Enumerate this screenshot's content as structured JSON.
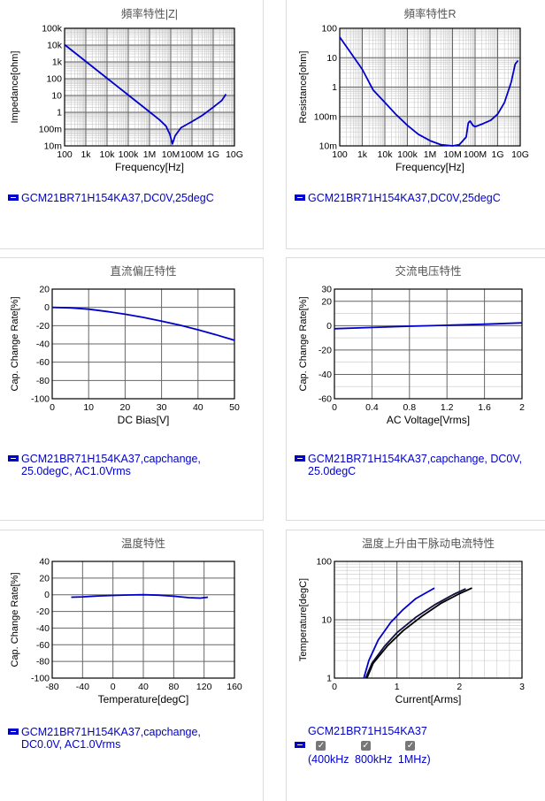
{
  "charts": [
    {
      "title": "頻率特性|Z|",
      "xlabel": "Frequency[Hz]",
      "ylabel": "Impedance[ohm]",
      "xticks": [
        "100",
        "1k",
        "10k",
        "100k",
        "1M",
        "10M",
        "100M",
        "1G",
        "10G"
      ],
      "yticks": [
        "100k",
        "10k",
        "1k",
        "100",
        "10",
        "1",
        "100m",
        "10m"
      ],
      "legend": "GCM21BR71H154KA37,DC0V,25degC"
    },
    {
      "title": "頻率特性R",
      "xlabel": "Frequency[Hz]",
      "ylabel": "Resistance[ohm]",
      "xticks": [
        "100",
        "1k",
        "10k",
        "100k",
        "1M",
        "10M",
        "100M",
        "1G",
        "10G"
      ],
      "yticks": [
        "100",
        "10",
        "1",
        "100m",
        "10m"
      ],
      "legend": "GCM21BR71H154KA37,DC0V,25degC"
    },
    {
      "title": "直流偏圧特性",
      "xlabel": "DC Bias[V]",
      "ylabel": "Cap. Change Rate[%]",
      "xticks": [
        "0",
        "10",
        "20",
        "30",
        "40",
        "50"
      ],
      "yticks": [
        "20",
        "0",
        "-20",
        "-40",
        "-60",
        "-80",
        "-100"
      ],
      "legend_lines": [
        "GCM21BR71H154KA37,capchange,",
        "25.0degC, AC1.0Vrms"
      ]
    },
    {
      "title": "交流电压特性",
      "xlabel": "AC Voltage[Vrms]",
      "ylabel": "Cap. Change Rate[%]",
      "xticks": [
        "0",
        "0.4",
        "0.8",
        "1.2",
        "1.6",
        "2"
      ],
      "yticks": [
        "30",
        "20",
        "0",
        "-20",
        "-40",
        "-60"
      ],
      "legend_lines": [
        "GCM21BR71H154KA37,capchange, DC0V,",
        "25.0degC"
      ]
    },
    {
      "title": "温度特性",
      "xlabel": "Temperature[degC]",
      "ylabel": "Cap. Change Rate[%]",
      "xticks": [
        "-80",
        "-40",
        "0",
        "40",
        "80",
        "120",
        "160"
      ],
      "yticks": [
        "40",
        "20",
        "0",
        "-20",
        "-40",
        "-60",
        "-80",
        "-100"
      ],
      "legend_lines": [
        "GCM21BR71H154KA37,capchange,",
        "DC0.0V, AC1.0Vrms"
      ]
    },
    {
      "title": "温度上升由干脉动电流特性",
      "xlabel": "Current[Arms]",
      "ylabel": "Temperature[degC]",
      "xticks": [
        "0",
        "1",
        "2",
        "3"
      ],
      "yticks": [
        "100",
        "10",
        "1"
      ],
      "legend_title": "GCM21BR71H154KA37",
      "legend_freqs": [
        "(400kHz",
        "800kHz",
        "1MHz)"
      ]
    }
  ],
  "chart_data": [
    {
      "type": "line",
      "title": "頻率特性|Z|",
      "xlabel": "Frequency[Hz]",
      "ylabel": "Impedance[ohm]",
      "x_scale": "log",
      "y_scale": "log",
      "xlim": [
        100,
        10000000000
      ],
      "ylim": [
        0.01,
        100000
      ],
      "series": [
        {
          "name": "GCM21BR71H154KA37,DC0V,25degC",
          "x": [
            100,
            1000,
            10000,
            100000,
            1000000,
            3000000,
            6000000,
            9000000,
            12000000,
            16000000,
            30000000,
            100000000,
            300000000,
            1000000000,
            2500000000,
            4000000000
          ],
          "y": [
            10600,
            1060,
            106,
            10.6,
            1.06,
            0.35,
            0.15,
            0.05,
            0.013,
            0.04,
            0.12,
            0.28,
            0.65,
            2.0,
            5.0,
            12
          ]
        }
      ]
    },
    {
      "type": "line",
      "title": "頻率特性R",
      "xlabel": "Frequency[Hz]",
      "ylabel": "Resistance[ohm]",
      "x_scale": "log",
      "y_scale": "log",
      "xlim": [
        100,
        10000000000
      ],
      "ylim": [
        0.01,
        100
      ],
      "series": [
        {
          "name": "GCM21BR71H154KA37,DC0V,25degC",
          "x": [
            100,
            300,
            1000,
            3000,
            10000,
            30000,
            100000,
            300000,
            1000000,
            3000000,
            10000000,
            20000000,
            40000000,
            50000000,
            60000000,
            80000000,
            100000000,
            200000000,
            500000000,
            1000000000,
            2000000000,
            4000000000,
            6000000000,
            8000000000
          ],
          "y": [
            50,
            15,
            4,
            0.8,
            0.3,
            0.12,
            0.05,
            0.025,
            0.015,
            0.011,
            0.01,
            0.011,
            0.02,
            0.06,
            0.07,
            0.05,
            0.045,
            0.055,
            0.075,
            0.12,
            0.3,
            1.5,
            6,
            8
          ]
        }
      ]
    },
    {
      "type": "line",
      "title": "直流偏圧特性",
      "xlabel": "DC Bias[V]",
      "ylabel": "Cap. Change Rate[%]",
      "xlim": [
        0,
        50
      ],
      "ylim": [
        -100,
        20
      ],
      "series": [
        {
          "name": "GCM21BR71H154KA37,capchange,25.0degC, AC1.0Vrms",
          "x": [
            0,
            5,
            10,
            15,
            20,
            25,
            30,
            35,
            40,
            45,
            50
          ],
          "y": [
            0,
            -0.5,
            -2,
            -4.5,
            -7.5,
            -11,
            -15,
            -19.5,
            -24.5,
            -30,
            -36
          ]
        }
      ]
    },
    {
      "type": "line",
      "title": "交流电压特性",
      "xlabel": "AC Voltage[Vrms]",
      "ylabel": "Cap. Change Rate[%]",
      "xlim": [
        0,
        2
      ],
      "ylim": [
        -60,
        30
      ],
      "series": [
        {
          "name": "GCM21BR71H154KA37,capchange, DC0V,25.0degC",
          "x": [
            0,
            0.4,
            0.8,
            1.2,
            1.6,
            2.0
          ],
          "y": [
            -2.5,
            -1.5,
            -0.5,
            0.3,
            1.2,
            2.3
          ]
        }
      ]
    },
    {
      "type": "line",
      "title": "温度特性",
      "xlabel": "Temperature[degC]",
      "ylabel": "Cap. Change Rate[%]",
      "xlim": [
        -80,
        160
      ],
      "ylim": [
        -100,
        40
      ],
      "series": [
        {
          "name": "GCM21BR71H154KA37,capchange,DC0.0V, AC1.0Vrms",
          "x": [
            -55,
            -40,
            -20,
            0,
            20,
            40,
            60,
            80,
            100,
            115,
            125
          ],
          "y": [
            -3,
            -2.5,
            -1.5,
            -0.8,
            -0.3,
            0,
            -0.5,
            -1.8,
            -3.5,
            -4,
            -3
          ]
        }
      ]
    },
    {
      "type": "line",
      "title": "温度上升由干脉动电流特性",
      "xlabel": "Current[Arms]",
      "ylabel": "Temperature[degC]",
      "y_scale": "log",
      "xlim": [
        0,
        3
      ],
      "ylim": [
        1,
        100
      ],
      "series": [
        {
          "name": "400kHz",
          "x": [
            0.47,
            0.55,
            0.7,
            0.9,
            1.1,
            1.3,
            1.6
          ],
          "y": [
            1,
            2,
            4.5,
            9,
            15,
            23,
            35
          ]
        },
        {
          "name": "800kHz",
          "x": [
            0.5,
            0.6,
            0.8,
            1.0,
            1.3,
            1.6,
            1.9,
            2.1
          ],
          "y": [
            1,
            1.8,
            3.5,
            6,
            11,
            18,
            27,
            34
          ]
        },
        {
          "name": "1MHz",
          "x": [
            0.52,
            0.62,
            0.85,
            1.1,
            1.4,
            1.7,
            2.0,
            2.2
          ],
          "y": [
            1,
            1.8,
            3.6,
            6.5,
            11.5,
            19,
            28,
            35
          ]
        }
      ]
    }
  ],
  "colors": {
    "line": "#0000cc",
    "grid_major": "#666666",
    "grid_minor": "#c8c8c8",
    "title": "#555555",
    "legend": "#0000cc"
  }
}
